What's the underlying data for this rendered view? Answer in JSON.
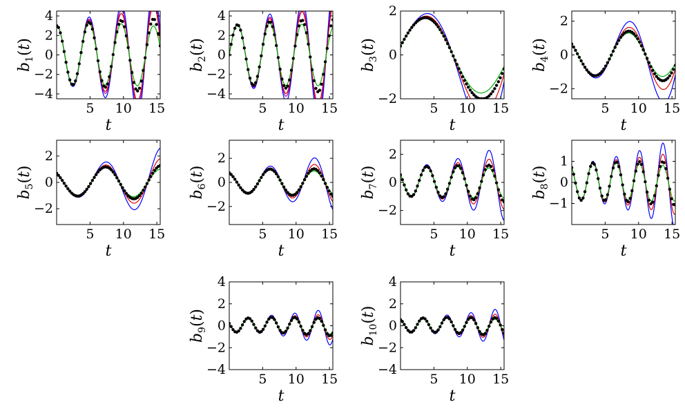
{
  "chart_data": [
    {
      "type": "line",
      "ylabel": "b_1(t)",
      "ylabel_symbol": "b",
      "ylabel_subscript": "1",
      "ylabel_arg": "t",
      "xlabel": "t",
      "xlim": [
        0,
        15.5
      ],
      "ylim": [
        -4.5,
        4.5
      ],
      "xticks": [
        5,
        10,
        15
      ],
      "yticks": [
        -4,
        -2,
        0,
        2,
        4
      ],
      "ytick_labels": [
        "−4",
        "−2",
        "0",
        "2",
        "4"
      ],
      "freq": 1.3,
      "phase": 0,
      "scale": 3,
      "grow": 0.12,
      "pos_bias": 0.6
    },
    {
      "type": "line",
      "ylabel": "b_2(t)",
      "ylabel_symbol": "b",
      "ylabel_subscript": "2",
      "ylabel_arg": "t",
      "xlabel": "t",
      "xlim": [
        0,
        15.5
      ],
      "ylim": [
        -4.5,
        4.5
      ],
      "xticks": [
        5,
        10,
        15
      ],
      "yticks": [
        -4,
        -2,
        0,
        2,
        4
      ],
      "ytick_labels": [
        "−4",
        "−2",
        "0",
        "2",
        "4"
      ],
      "freq": 1.3,
      "phase": -1.5708,
      "scale": 3,
      "grow": 0.12,
      "pos_bias": 0.6
    },
    {
      "type": "line",
      "ylabel": "b_3(t)",
      "ylabel_symbol": "b",
      "ylabel_subscript": "3",
      "ylabel_arg": "t",
      "xlabel": "t",
      "xlim": [
        0,
        15.5
      ],
      "ylim": [
        -2,
        2
      ],
      "xticks": [
        5,
        10,
        15
      ],
      "yticks": [
        -2,
        0,
        2
      ],
      "ytick_labels": [
        "−2",
        "0",
        "2"
      ],
      "freq": 0.37,
      "phase": -1.3,
      "scale": 1.5,
      "grow": 0.18,
      "pos_bias": 0.4
    },
    {
      "type": "line",
      "ylabel": "b_4(t)",
      "ylabel_symbol": "b",
      "ylabel_subscript": "4",
      "ylabel_arg": "t",
      "xlabel": "t",
      "xlim": [
        0,
        15.5
      ],
      "ylim": [
        -2.6,
        2.6
      ],
      "xticks": [
        5,
        10,
        15
      ],
      "yticks": [
        -2,
        0,
        2
      ],
      "ytick_labels": [
        "−2",
        "0",
        "2"
      ],
      "freq": 0.62,
      "phase": 1.0,
      "scale": 1.2,
      "grow": 0.12,
      "pos_bias": 0.3
    },
    {
      "type": "line",
      "ylabel": "b_5(t)",
      "ylabel_symbol": "b",
      "ylabel_subscript": "5",
      "ylabel_arg": "t",
      "xlabel": "t",
      "xlim": [
        0,
        15.5
      ],
      "ylim": [
        -3.2,
        3.2
      ],
      "xticks": [
        5,
        10,
        15
      ],
      "yticks": [
        -2,
        0,
        2
      ],
      "ytick_labels": [
        "−2",
        "0",
        "2"
      ],
      "freq": 0.75,
      "phase": 0.8,
      "scale": 1.0,
      "grow": 0.14,
      "pos_bias": 0.2
    },
    {
      "type": "line",
      "ylabel": "b_6(t)",
      "ylabel_symbol": "b",
      "ylabel_subscript": "6",
      "ylabel_arg": "t",
      "xlabel": "t",
      "xlim": [
        0,
        15.5
      ],
      "ylim": [
        -3.5,
        3.5
      ],
      "xticks": [
        5,
        10,
        15
      ],
      "yticks": [
        -2,
        0,
        2
      ],
      "ytick_labels": [
        "−2",
        "0",
        "2"
      ],
      "freq": 0.95,
      "phase": 0.5,
      "scale": 0.9,
      "grow": 0.16,
      "pos_bias": 0.5
    },
    {
      "type": "line",
      "ylabel": "b_7(t)",
      "ylabel_symbol": "b",
      "ylabel_subscript": "7",
      "ylabel_arg": "t",
      "xlabel": "t",
      "xlim": [
        0,
        15.5
      ],
      "ylim": [
        -3,
        3
      ],
      "xticks": [
        5,
        10,
        15
      ],
      "yticks": [
        -2,
        0,
        2
      ],
      "ytick_labels": [
        "−2",
        "0",
        "2"
      ],
      "freq": 1.35,
      "phase": 1.0,
      "scale": 1.0,
      "grow": 0.14,
      "pos_bias": 0.4
    },
    {
      "type": "line",
      "ylabel": "b_8(t)",
      "ylabel_symbol": "b",
      "ylabel_subscript": "8",
      "ylabel_arg": "t",
      "xlabel": "t",
      "xlim": [
        0,
        15.5
      ],
      "ylim": [
        -2,
        2
      ],
      "xticks": [
        5,
        10,
        15
      ],
      "yticks": [
        -1,
        0,
        1
      ],
      "ytick_labels": [
        "−1",
        "0",
        "1"
      ],
      "freq": 1.8,
      "phase": 0.6,
      "scale": 0.85,
      "grow": 0.1,
      "pos_bias": 0.3
    },
    {
      "type": "line",
      "ylabel": "b_9(t)",
      "ylabel_symbol": "b",
      "ylabel_subscript": "9",
      "ylabel_arg": "t",
      "xlabel": "t",
      "xlim": [
        0,
        15.5
      ],
      "ylim": [
        -4,
        4
      ],
      "xticks": [
        5,
        10,
        15
      ],
      "yticks": [
        -4,
        -2,
        0,
        2,
        4
      ],
      "ytick_labels": [
        "−4",
        "−2",
        "0",
        "2",
        "4"
      ],
      "freq": 1.8,
      "phase": 1.2,
      "scale": 0.6,
      "grow": 0.17,
      "pos_bias": 0.6
    },
    {
      "type": "line",
      "ylabel": "b_10(t)",
      "ylabel_symbol": "b",
      "ylabel_subscript": "10",
      "ylabel_arg": "t",
      "xlabel": "t",
      "xlim": [
        0,
        15.5
      ],
      "ylim": [
        -4,
        4
      ],
      "xticks": [
        5,
        10,
        15
      ],
      "yticks": [
        -4,
        -2,
        0,
        2,
        4
      ],
      "ytick_labels": [
        "−4",
        "−2",
        "0",
        "2",
        "4"
      ],
      "freq": 1.75,
      "phase": 0.4,
      "scale": 0.6,
      "grow": 0.17,
      "pos_bias": 0.5
    }
  ],
  "series_colors": {
    "markers": "#000000",
    "green": "#00b000",
    "red": "#e00000",
    "blue": "#0000ff",
    "purple": "#b000b0"
  },
  "series_gain": {
    "markers": 1.0,
    "green": 0.8,
    "red": 1.4,
    "blue": 2.0,
    "purple": 1.6
  }
}
